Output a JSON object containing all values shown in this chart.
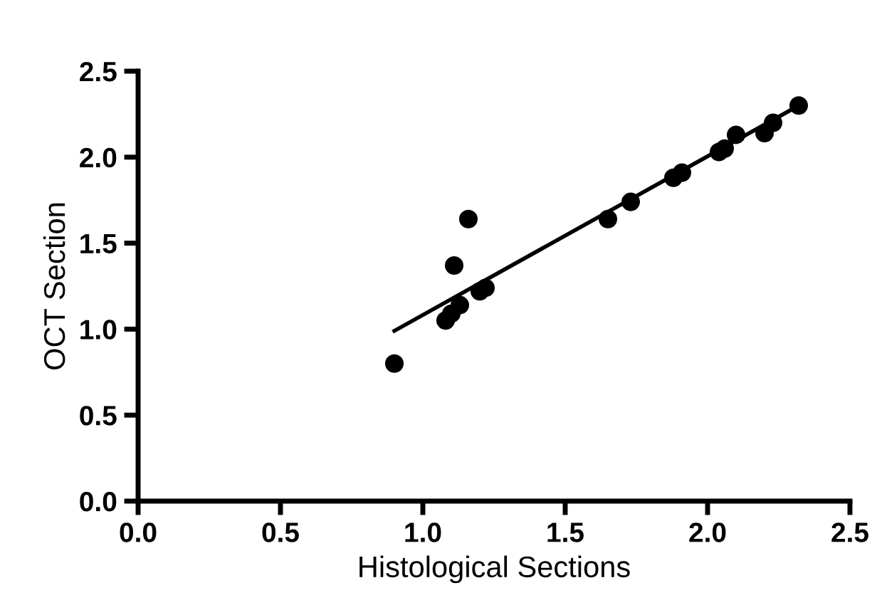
{
  "chart_data": {
    "type": "scatter",
    "xlabel": "Histological Sections",
    "ylabel": "OCT Section",
    "xlim": [
      0,
      2.5
    ],
    "ylim": [
      0,
      2.5
    ],
    "xticks": [
      {
        "value": 0,
        "label": "0.0"
      },
      0.5,
      {
        "value": 1,
        "label": "1.0"
      },
      1.5,
      {
        "value": 2,
        "label": "2.0"
      },
      2.5
    ],
    "yticks": [
      {
        "value": 0,
        "label": "0.0"
      },
      0.5,
      {
        "value": 1,
        "label": "1.0"
      },
      1.5,
      {
        "value": 2,
        "label": "2.0"
      },
      2.5
    ],
    "grid": false,
    "series": [
      {
        "marker": "circle",
        "color": "#000000",
        "x": [
          0.9,
          1.08,
          1.1,
          1.13,
          1.11,
          1.16,
          1.2,
          1.22,
          1.65,
          1.73,
          1.88,
          1.91,
          2.04,
          2.06,
          2.1,
          2.2,
          2.23,
          2.32
        ],
        "values": [
          0.8,
          1.05,
          1.09,
          1.14,
          1.37,
          1.64,
          1.22,
          1.24,
          1.64,
          1.74,
          1.88,
          1.91,
          2.03,
          2.05,
          2.13,
          2.14,
          2.2,
          2.3
        ]
      },
      {
        "type": "line",
        "marker": "none",
        "color": "#000000",
        "x": [
          0.9,
          2.32
        ],
        "values": [
          0.99,
          2.3
        ]
      }
    ]
  }
}
